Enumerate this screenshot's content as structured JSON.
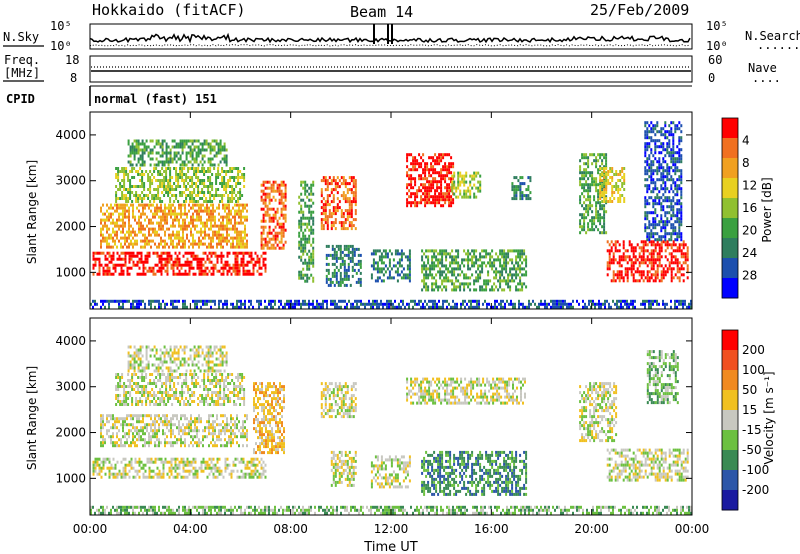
{
  "header": {
    "station": "Hokkaido (fitACF)",
    "beam": "Beam 14",
    "date": "25/Feb/2009"
  },
  "noise_panel": {
    "left_label": "N.Sky",
    "right_label": "N.Search",
    "right_dots": "......",
    "left_ticks": [
      "10^5",
      "10^0"
    ],
    "right_ticks": [
      "10^5",
      "10^0"
    ]
  },
  "freq_panel": {
    "left_label_top": "Freq.",
    "left_label_unit": "[MHz]",
    "right_label": "Nave",
    "right_dots": "....",
    "left_ticks": [
      "18",
      "8"
    ],
    "right_ticks": [
      "60",
      "0"
    ]
  },
  "cpid_panel": {
    "label": "CPID",
    "text": "normal (fast) 151"
  },
  "colors": {
    "power_scale": [
      "#0000ff",
      "#1c4fae",
      "#2e7d5e",
      "#3aa040",
      "#90c030",
      "#e8d020",
      "#f0a020",
      "#f07020",
      "#ff0000"
    ],
    "velocity_scale": [
      "#1a1aa0",
      "#2c56a8",
      "#3a8a54",
      "#6cc040",
      "#c8c8c0",
      "#f0c020",
      "#f08a20",
      "#f05020",
      "#ff0000"
    ]
  },
  "chart_data": [
    {
      "type": "heatmap",
      "parameter": "Power",
      "ylabel": "Slant Range [km]",
      "x_range": [
        0,
        24
      ],
      "ylim": [
        200,
        4500
      ],
      "yticks": [
        "1000",
        "2000",
        "3000",
        "4000"
      ],
      "colorbar_label": "Power [dB]",
      "colorbar_ticks": [
        "4",
        "8",
        "12",
        "16",
        "20",
        "24",
        "28"
      ],
      "regions": [
        {
          "x": [
            0.1,
            7.0
          ],
          "y": [
            900,
            1450
          ],
          "c": 8
        },
        {
          "x": [
            0.4,
            6.3
          ],
          "y": [
            1500,
            2500
          ],
          "c": 6
        },
        {
          "x": [
            1.0,
            6.2
          ],
          "y": [
            2500,
            3300
          ],
          "c": 4
        },
        {
          "x": [
            1.5,
            5.5
          ],
          "y": [
            3300,
            3900
          ],
          "c": 3
        },
        {
          "x": [
            6.8,
            7.8
          ],
          "y": [
            1500,
            3000
          ],
          "c": 7
        },
        {
          "x": [
            8.3,
            8.9
          ],
          "y": [
            800,
            3000
          ],
          "c": 3
        },
        {
          "x": [
            9.2,
            10.6
          ],
          "y": [
            1900,
            3100
          ],
          "c": 7
        },
        {
          "x": [
            9.4,
            10.8
          ],
          "y": [
            700,
            1600
          ],
          "c": 2
        },
        {
          "x": [
            11.2,
            12.8
          ],
          "y": [
            800,
            1500
          ],
          "c": 2
        },
        {
          "x": [
            12.6,
            14.5
          ],
          "y": [
            2400,
            3600
          ],
          "c": 8
        },
        {
          "x": [
            14.4,
            15.6
          ],
          "y": [
            2600,
            3200
          ],
          "c": 4
        },
        {
          "x": [
            13.2,
            17.4
          ],
          "y": [
            600,
            1500
          ],
          "c": 3
        },
        {
          "x": [
            16.8,
            17.6
          ],
          "y": [
            2600,
            3100
          ],
          "c": 2
        },
        {
          "x": [
            19.5,
            20.6
          ],
          "y": [
            1800,
            3600
          ],
          "c": 3
        },
        {
          "x": [
            20.3,
            21.3
          ],
          "y": [
            2500,
            3300
          ],
          "c": 5
        },
        {
          "x": [
            20.6,
            23.9
          ],
          "y": [
            800,
            1700
          ],
          "c": 8
        },
        {
          "x": [
            22.1,
            23.6
          ],
          "y": [
            1700,
            4300
          ],
          "c": 1
        },
        {
          "x": [
            0.0,
            24.0
          ],
          "y": [
            200,
            400
          ],
          "c": 1
        }
      ]
    },
    {
      "type": "heatmap",
      "parameter": "Velocity",
      "ylabel": "Slant Range [km]",
      "xlabel": "Time UT",
      "x_range": [
        0,
        24
      ],
      "ylim": [
        200,
        4500
      ],
      "xticks": [
        "00:00",
        "04:00",
        "08:00",
        "12:00",
        "16:00",
        "20:00",
        "00:00"
      ],
      "yticks": [
        "1000",
        "2000",
        "3000",
        "4000"
      ],
      "colorbar_label": "Velocity [m s⁻¹]",
      "colorbar_ticks": [
        "200",
        "100",
        "50",
        "15",
        "-15",
        "-50",
        "-100",
        "-200"
      ],
      "regions": [
        {
          "x": [
            0.1,
            7.0
          ],
          "y": [
            1000,
            1450
          ],
          "c": 4
        },
        {
          "x": [
            0.4,
            6.3
          ],
          "y": [
            1700,
            2400
          ],
          "c": 4
        },
        {
          "x": [
            1.0,
            6.2
          ],
          "y": [
            2600,
            3300
          ],
          "c": 4
        },
        {
          "x": [
            1.5,
            5.5
          ],
          "y": [
            3300,
            3900
          ],
          "c": 4
        },
        {
          "x": [
            6.5,
            7.8
          ],
          "y": [
            1500,
            3100
          ],
          "c": 5
        },
        {
          "x": [
            9.2,
            10.6
          ],
          "y": [
            2300,
            3100
          ],
          "c": 4
        },
        {
          "x": [
            9.6,
            10.6
          ],
          "y": [
            800,
            1600
          ],
          "c": 4
        },
        {
          "x": [
            11.2,
            12.8
          ],
          "y": [
            800,
            1500
          ],
          "c": 4
        },
        {
          "x": [
            12.6,
            17.4
          ],
          "y": [
            2600,
            3200
          ],
          "c": 4
        },
        {
          "x": [
            13.2,
            17.4
          ],
          "y": [
            600,
            1600
          ],
          "c": 2
        },
        {
          "x": [
            19.5,
            21.0
          ],
          "y": [
            1800,
            3100
          ],
          "c": 4
        },
        {
          "x": [
            20.6,
            23.9
          ],
          "y": [
            900,
            1650
          ],
          "c": 4
        },
        {
          "x": [
            22.2,
            23.5
          ],
          "y": [
            2600,
            3800
          ],
          "c": 3
        },
        {
          "x": [
            0.0,
            24.0
          ],
          "y": [
            200,
            400
          ],
          "c": 3
        }
      ]
    }
  ]
}
